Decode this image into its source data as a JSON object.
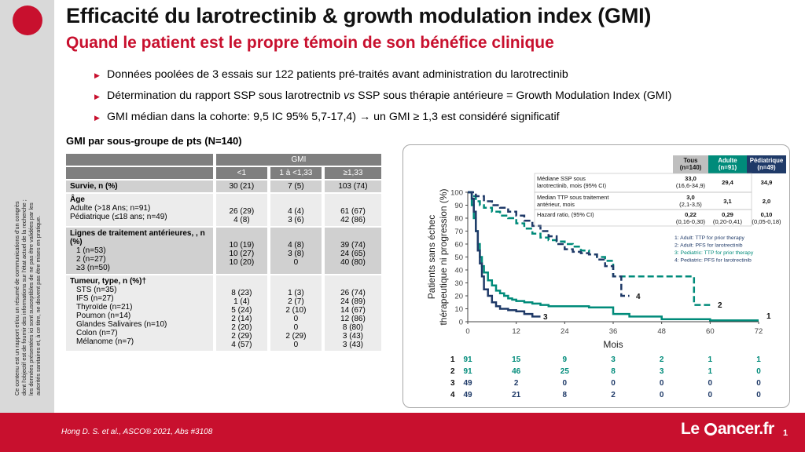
{
  "side_text": [
    "Ce contenu est un rapport et/ou un résumé de communications d'un congrès",
    "dont l'objectif est de fournir des informations sur l'état actuel de la recherche ;",
    "les données présentées ici sont susceptibles de ne pas être validées par les",
    "autorités sanitaires et, à ce titre, ne doivent pas être mises en pratique."
  ],
  "title": "Efficacité du larotrectinib & growth modulation index (GMI)",
  "subtitle": "Quand le patient est le propre témoin de son bénéfice clinique",
  "bullets": [
    "Données poolées de 3 essais  sur 122 patients pré-traités avant administration du larotrectinib",
    "Détermination du rapport SSP sous larotrectnib vs SSP sous thérapie antérieure = Growth Modulation Index (GMI)",
    "GMI médian dans la cohorte: 9,5 IC 95% 5,7-17,4) → un GMI ≥ 1,3 est considéré significatif"
  ],
  "table": {
    "heading": "GMI par sous-groupe de pts (N=140)",
    "gmi_header": "GMI",
    "columns": [
      "<1",
      "1 à <1,33",
      "≥1,33"
    ],
    "survie": {
      "label": "Survie, n (%)",
      "values": [
        "30 (21)",
        "7 (5)",
        "103 (74)"
      ]
    },
    "age": {
      "label": "Âge",
      "rows": "Adulte (>18 Ans; n=91)\nPédiatrique (≤18 ans; n=49)",
      "c1": "26 (29)\n4 (8)",
      "c2": "4 (4)\n3 (6)",
      "c3": "61 (67)\n42 (86)"
    },
    "lignes": {
      "label": "Lignes de traitement antérieures, , n (%)",
      "rows": "1 (n=53)\n2 (n=27)\n≥3 (n=50)",
      "c1": "10 (19)\n10 (27)\n10 (20)",
      "c2": "4 (8)\n3 (8)\n0",
      "c3": "39 (74)\n24 (65)\n40 (80)"
    },
    "tumeur": {
      "label": "Tumeur, type, n (%)†",
      "rows": "STS (n=35)\nIFS (n=27)\nThyroïde (n=21)\nPoumon (n=14)\nGlandes Salivaires (n=10)\nColon (n=7)\nMélanome (n=7)",
      "c1": "8 (23)\n1 (4)\n5 (24)\n2 (14)\n2 (20)\n2 (29)\n4 (57)",
      "c2": "1 (3)\n2 (7)\n2 (10)\n0\n0\n2 (29)\n0",
      "c3": "26 (74)\n24 (89)\n14 (67)\n12 (86)\n8 (80)\n3 (43)\n3 (43)"
    }
  },
  "inset_table": {
    "headers": [
      "Tous\n(n=140)",
      "Adulte\n(n=91)",
      "Pédiatrique\n(n=49)"
    ],
    "header_colors": [
      "#bfbfbf",
      "#008b7a",
      "#1f3a68"
    ],
    "rows": [
      {
        "label": "Médiane SSP sous\nlarotrectinib, mois (95% CI)",
        "values": [
          "33,0\n(16,6-34,9)",
          "29,4",
          "34,9"
        ]
      },
      {
        "label": "Median TTP sous traitement\nantérieur, mois",
        "values": [
          "3,0\n(2,1-3,5)",
          "3,1",
          "2,0"
        ]
      },
      {
        "label": "Hazard ratio, (95% CI)",
        "values": [
          "0,22\n(0,16-0,30)",
          "0,29\n(0,20-0,41)",
          "0,10\n(0,05-0,18)"
        ]
      }
    ]
  },
  "chart_data": {
    "type": "line",
    "ylabel": "Patients sans échec\nthérapeutique ni progression  (%)",
    "xlabel": "Mois",
    "xlim": [
      0,
      72
    ],
    "ylim": [
      0,
      100
    ],
    "xticks": [
      "0",
      "12",
      "24",
      "36",
      "48",
      "60",
      "72"
    ],
    "yticks": [
      "0",
      "10",
      "20",
      "30",
      "40",
      "50",
      "60",
      "70",
      "80",
      "90",
      "100"
    ],
    "legend": [
      "1: Adult:  TTP for prior therapy",
      "2: Adult:  PFS for larotrectinib",
      "3: Pediatric: TTP for prior therapy",
      "4: Pediatric: PFS for larotrectinib"
    ],
    "series": [
      {
        "name": "1",
        "color": "#008b7a",
        "dashed": false,
        "x": [
          0,
          1,
          1.5,
          2,
          2.5,
          3,
          3.5,
          4,
          5,
          6,
          7,
          8,
          9,
          10,
          11,
          12,
          14,
          16,
          18,
          20,
          24,
          30,
          36,
          40,
          48,
          60,
          72
        ],
        "y": [
          100,
          90,
          80,
          70,
          60,
          50,
          43,
          38,
          32,
          28,
          24,
          22,
          20,
          18,
          17,
          16,
          15,
          14,
          13,
          12,
          12,
          11,
          6,
          4,
          2,
          1,
          1
        ]
      },
      {
        "name": "2",
        "color": "#008b7a",
        "dashed": true,
        "x": [
          0,
          1,
          2,
          3,
          4,
          6,
          8,
          10,
          12,
          14,
          16,
          18,
          20,
          22,
          24,
          26,
          28,
          30,
          32,
          34,
          36,
          40,
          44,
          48,
          52,
          55,
          56,
          60
        ],
        "y": [
          100,
          97,
          93,
          90,
          88,
          85,
          82,
          80,
          76,
          72,
          68,
          65,
          63,
          62,
          60,
          58,
          55,
          52,
          50,
          47,
          35,
          35,
          35,
          35,
          35,
          35,
          13,
          13
        ]
      },
      {
        "name": "3",
        "color": "#1f3a68",
        "dashed": false,
        "x": [
          0,
          1,
          1.5,
          2,
          2.5,
          3,
          3.5,
          4,
          5,
          6,
          7,
          8,
          10,
          12,
          14,
          16,
          18
        ],
        "y": [
          100,
          95,
          85,
          70,
          55,
          45,
          35,
          25,
          20,
          15,
          12,
          10,
          9,
          8,
          6,
          4,
          4
        ]
      },
      {
        "name": "4",
        "color": "#1f3a68",
        "dashed": true,
        "x": [
          0,
          2,
          4,
          6,
          8,
          10,
          12,
          14,
          16,
          18,
          20,
          22,
          24,
          26,
          28,
          30,
          32,
          34,
          36,
          38,
          40
        ],
        "y": [
          100,
          97,
          93,
          90,
          88,
          85,
          82,
          78,
          74,
          70,
          66,
          60,
          56,
          54,
          53,
          52,
          48,
          43,
          35,
          20,
          20
        ]
      }
    ],
    "risk_table": {
      "x": [
        0,
        12,
        24,
        36,
        48,
        60,
        72
      ],
      "rows": [
        {
          "label": "1",
          "values": [
            "91",
            "15",
            "9",
            "3",
            "2",
            "1",
            "1"
          ]
        },
        {
          "label": "2",
          "values": [
            "91",
            "46",
            "25",
            "8",
            "3",
            "1",
            "0"
          ]
        },
        {
          "label": "3",
          "values": [
            "49",
            "2",
            "0",
            "0",
            "0",
            "0",
            "0"
          ]
        },
        {
          "label": "4",
          "values": [
            "49",
            "21",
            "8",
            "2",
            "0",
            "0",
            "0"
          ]
        }
      ]
    }
  },
  "footer": {
    "reference": "Hong D. S. et al., ASCO® 2021, Abs #3108",
    "logo_left": "Le ",
    "logo_right": "ancer.fr",
    "page_number": "1"
  }
}
